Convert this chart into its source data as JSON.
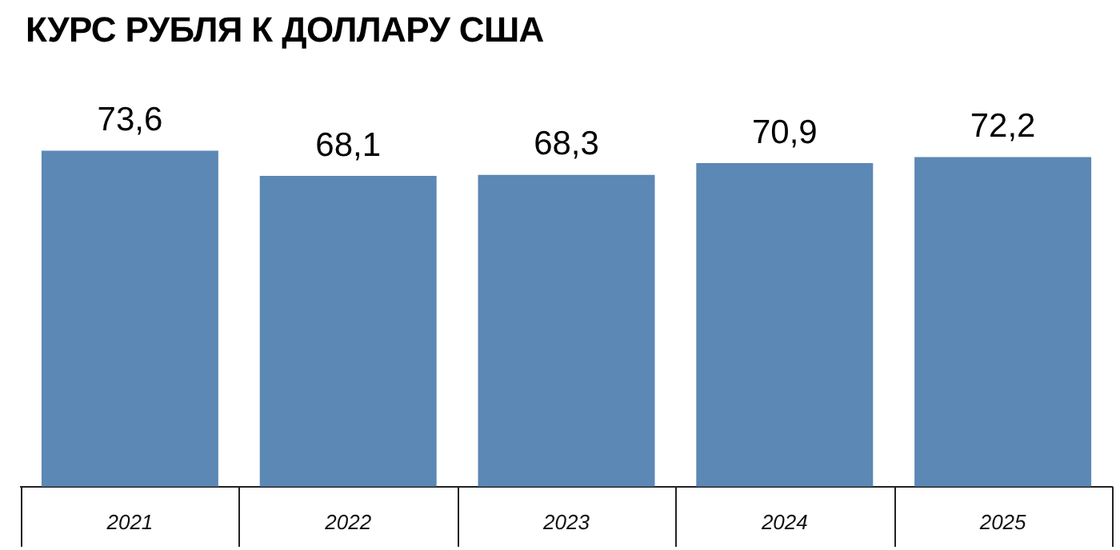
{
  "chart_data": {
    "type": "bar",
    "title": "КУРС РУБЛЯ К ДОЛЛАРУ США",
    "categories": [
      "2021",
      "2022",
      "2023",
      "2024",
      "2025"
    ],
    "values": [
      73.6,
      68.1,
      68.3,
      70.9,
      72.2
    ],
    "value_labels": [
      "73,6",
      "68,1",
      "68,3",
      "70,9",
      "72,2"
    ],
    "color": "#5b88b5",
    "tick_labels": "x"
  }
}
